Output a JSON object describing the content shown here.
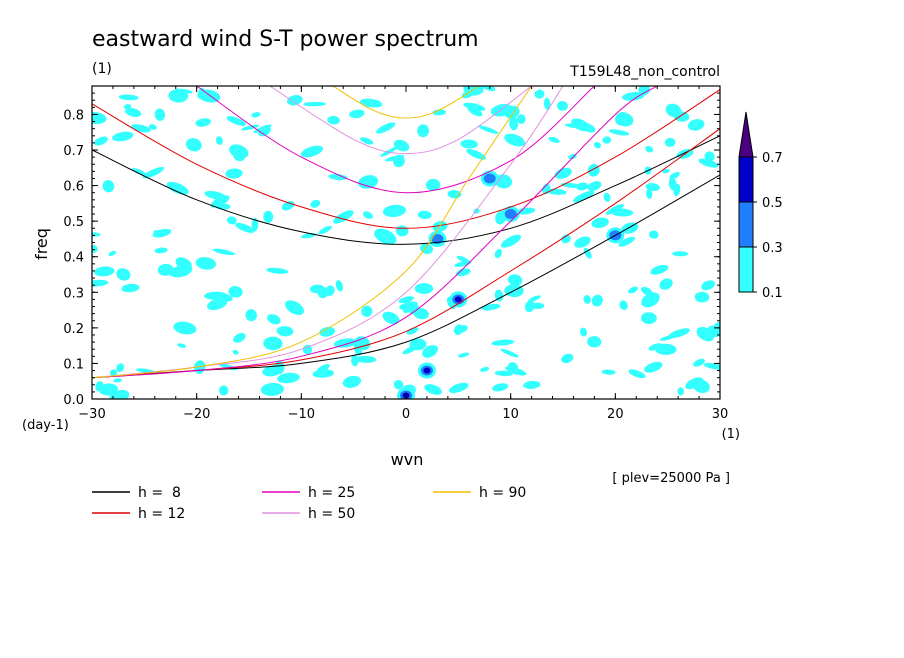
{
  "title": "eastward wind S-T power spectrum",
  "unit_note": "(1)",
  "case_name": "T159L48_non_control",
  "level_note": "[ plev=25000 Pa ]",
  "chart_data": {
    "type": "heatmap",
    "title": "eastward wind S-T power spectrum",
    "xlabel": "wvn",
    "xunit": "(1)",
    "ylabel": "freq",
    "yunit": "(day-1)",
    "xlim": [
      -30,
      30
    ],
    "ylim": [
      0,
      0.88
    ],
    "xticks": [
      -30,
      -20,
      -10,
      0,
      10,
      20,
      30
    ],
    "xtick_labels": [
      "-30",
      "-20",
      "-10",
      "0",
      "10",
      "20",
      "30"
    ],
    "yticks": [
      0,
      0.1,
      0.2,
      0.3,
      0.4,
      0.5,
      0.6,
      0.7,
      0.8
    ],
    "ytick_labels": [
      "0.0",
      "0.1",
      "0.2",
      "0.3",
      "0.4",
      "0.5",
      "0.6",
      "0.7",
      "0.8"
    ],
    "colorbar": {
      "levels": [
        "0.1",
        "0.3",
        "0.5",
        "0.7"
      ],
      "colors": [
        "#33ffff",
        "#1f7fff",
        "#0000c8",
        "#4b0082"
      ],
      "extend": "max"
    },
    "legend": [
      {
        "label": "h =  8",
        "color": "#000000"
      },
      {
        "label": "h = 12",
        "color": "#e00000"
      },
      {
        "label": "h = 25",
        "color": "#e000c0"
      },
      {
        "label": "h = 50",
        "color": "#e090e0"
      },
      {
        "label": "h = 90",
        "color": "#f0c000"
      }
    ],
    "dispersion_curves": [
      {
        "h": 8,
        "color": "#000000",
        "points": [
          [
            -30,
            0.06
          ],
          [
            -20,
            0.08
          ],
          [
            -10,
            0.1
          ],
          [
            0,
            0.16
          ],
          [
            10,
            0.3
          ],
          [
            20,
            0.46
          ],
          [
            30,
            0.63
          ]
        ],
        "min_curve": [
          [
            -30,
            0.7
          ],
          [
            -20,
            0.56
          ],
          [
            -10,
            0.47
          ],
          [
            0,
            0.435
          ],
          [
            10,
            0.48
          ],
          [
            20,
            0.6
          ],
          [
            30,
            0.74
          ]
        ]
      },
      {
        "h": 12,
        "color": "#e00000",
        "points": [
          [
            -30,
            0.06
          ],
          [
            -20,
            0.08
          ],
          [
            -10,
            0.11
          ],
          [
            0,
            0.19
          ],
          [
            10,
            0.36
          ],
          [
            20,
            0.55
          ],
          [
            30,
            0.76
          ]
        ],
        "min_curve": [
          [
            -30,
            0.83
          ],
          [
            -20,
            0.66
          ],
          [
            -10,
            0.54
          ],
          [
            0,
            0.48
          ],
          [
            10,
            0.54
          ],
          [
            20,
            0.68
          ],
          [
            30,
            0.87
          ]
        ]
      },
      {
        "h": 25,
        "color": "#e000c0",
        "points": [
          [
            -30,
            0.06
          ],
          [
            -20,
            0.08
          ],
          [
            -10,
            0.12
          ],
          [
            0,
            0.23
          ],
          [
            10,
            0.5
          ],
          [
            20,
            0.8
          ],
          [
            24,
            0.88
          ]
        ],
        "min_curve": [
          [
            -20,
            0.88
          ],
          [
            -10,
            0.68
          ],
          [
            0,
            0.58
          ],
          [
            10,
            0.67
          ],
          [
            18,
            0.88
          ]
        ]
      },
      {
        "h": 50,
        "color": "#e090e0",
        "points": [
          [
            -30,
            0.06
          ],
          [
            -20,
            0.09
          ],
          [
            -10,
            0.14
          ],
          [
            0,
            0.3
          ],
          [
            10,
            0.66
          ],
          [
            15,
            0.88
          ]
        ],
        "min_curve": [
          [
            -13,
            0.88
          ],
          [
            -5,
            0.73
          ],
          [
            0,
            0.69
          ],
          [
            5,
            0.73
          ],
          [
            12,
            0.88
          ]
        ]
      },
      {
        "h": 90,
        "color": "#f0c000",
        "points": [
          [
            -30,
            0.06
          ],
          [
            -20,
            0.09
          ],
          [
            -10,
            0.16
          ],
          [
            0,
            0.36
          ],
          [
            6,
            0.62
          ],
          [
            12,
            0.88
          ]
        ],
        "min_curve": [
          [
            -7,
            0.88
          ],
          [
            -3,
            0.81
          ],
          [
            0,
            0.79
          ],
          [
            3,
            0.81
          ],
          [
            7,
            0.88
          ]
        ]
      }
    ],
    "spectral_peaks": [
      {
        "x": 2,
        "y": 0.08,
        "level": "0.5"
      },
      {
        "x": 5,
        "y": 0.28,
        "level": "0.5"
      },
      {
        "x": 3,
        "y": 0.45,
        "level": "0.3"
      },
      {
        "x": 8,
        "y": 0.62,
        "level": "0.3"
      },
      {
        "x": 0,
        "y": 0.01,
        "level": "0.5"
      },
      {
        "x": 20,
        "y": 0.46,
        "level": "0.3"
      },
      {
        "x": 10,
        "y": 0.52,
        "level": "0.3"
      }
    ]
  }
}
